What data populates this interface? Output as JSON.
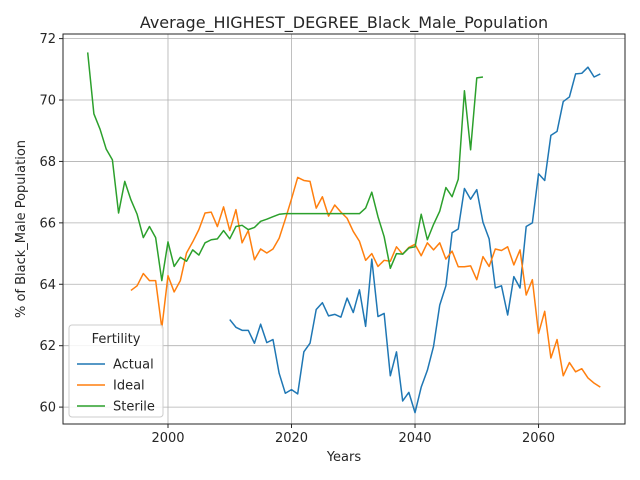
{
  "chart_data": {
    "type": "line",
    "title": "Average_HIGHEST_DEGREE_Black_Male_Population",
    "xlabel": "Years",
    "ylabel": "% of Black_Male Population",
    "xlim": [
      1983,
      2074
    ],
    "ylim": [
      59.45,
      72.15
    ],
    "xticks": [
      2000,
      2020,
      2040,
      2060
    ],
    "yticks": [
      60,
      62,
      64,
      66,
      68,
      70,
      72
    ],
    "grid": true,
    "legend": {
      "title": "Fertility",
      "placement": "lower-left"
    },
    "series": [
      {
        "name": "Actual",
        "color": "#1f77b4",
        "points": [
          [
            2010,
            62.85
          ],
          [
            2011,
            62.6
          ],
          [
            2012,
            62.5
          ],
          [
            2013,
            62.5
          ],
          [
            2014,
            62.08
          ],
          [
            2015,
            62.7
          ],
          [
            2016,
            62.1
          ],
          [
            2017,
            62.2
          ],
          [
            2018,
            61.1
          ],
          [
            2019,
            60.45
          ],
          [
            2020,
            60.57
          ],
          [
            2021,
            60.43
          ],
          [
            2022,
            61.8
          ],
          [
            2023,
            62.08
          ],
          [
            2024,
            63.18
          ],
          [
            2025,
            63.4
          ],
          [
            2026,
            62.97
          ],
          [
            2027,
            63.02
          ],
          [
            2028,
            62.93
          ],
          [
            2029,
            63.55
          ],
          [
            2030,
            63.08
          ],
          [
            2031,
            63.82
          ],
          [
            2032,
            62.63
          ],
          [
            2033,
            64.82
          ],
          [
            2034,
            62.95
          ],
          [
            2035,
            63.05
          ],
          [
            2036,
            61.02
          ],
          [
            2037,
            61.8
          ],
          [
            2038,
            60.2
          ],
          [
            2039,
            60.48
          ],
          [
            2040,
            59.82
          ],
          [
            2041,
            60.65
          ],
          [
            2042,
            61.2
          ],
          [
            2043,
            61.98
          ],
          [
            2044,
            63.32
          ],
          [
            2045,
            63.95
          ],
          [
            2046,
            65.68
          ],
          [
            2047,
            65.8
          ],
          [
            2048,
            67.12
          ],
          [
            2049,
            66.77
          ],
          [
            2050,
            67.08
          ],
          [
            2051,
            66.02
          ],
          [
            2052,
            65.48
          ],
          [
            2053,
            63.88
          ],
          [
            2054,
            63.95
          ],
          [
            2055,
            63.0
          ],
          [
            2056,
            64.25
          ],
          [
            2057,
            63.88
          ],
          [
            2058,
            65.88
          ],
          [
            2059,
            66.0
          ],
          [
            2060,
            67.6
          ],
          [
            2061,
            67.38
          ],
          [
            2062,
            68.85
          ],
          [
            2063,
            68.98
          ],
          [
            2064,
            69.95
          ],
          [
            2065,
            70.1
          ],
          [
            2066,
            70.85
          ],
          [
            2067,
            70.87
          ],
          [
            2068,
            71.07
          ],
          [
            2069,
            70.75
          ],
          [
            2070,
            70.85
          ]
        ]
      },
      {
        "name": "Ideal",
        "color": "#ff7f0e",
        "points": [
          [
            1994,
            63.8
          ],
          [
            1995,
            63.95
          ],
          [
            1996,
            64.35
          ],
          [
            1997,
            64.12
          ],
          [
            1998,
            64.12
          ],
          [
            1999,
            62.58
          ],
          [
            2000,
            64.28
          ],
          [
            2001,
            63.75
          ],
          [
            2002,
            64.12
          ],
          [
            2003,
            65.02
          ],
          [
            2004,
            65.38
          ],
          [
            2005,
            65.78
          ],
          [
            2006,
            66.32
          ],
          [
            2007,
            66.35
          ],
          [
            2008,
            65.88
          ],
          [
            2009,
            66.52
          ],
          [
            2010,
            65.75
          ],
          [
            2011,
            66.43
          ],
          [
            2012,
            65.35
          ],
          [
            2013,
            65.75
          ],
          [
            2014,
            64.8
          ],
          [
            2015,
            65.15
          ],
          [
            2016,
            65.02
          ],
          [
            2017,
            65.15
          ],
          [
            2018,
            65.5
          ],
          [
            2019,
            66.12
          ],
          [
            2020,
            66.78
          ],
          [
            2021,
            67.48
          ],
          [
            2022,
            67.38
          ],
          [
            2023,
            67.35
          ],
          [
            2024,
            66.48
          ],
          [
            2025,
            66.85
          ],
          [
            2026,
            66.22
          ],
          [
            2027,
            66.58
          ],
          [
            2028,
            66.35
          ],
          [
            2029,
            66.15
          ],
          [
            2030,
            65.72
          ],
          [
            2031,
            65.4
          ],
          [
            2032,
            64.78
          ],
          [
            2033,
            65.0
          ],
          [
            2034,
            64.58
          ],
          [
            2035,
            64.78
          ],
          [
            2036,
            64.75
          ],
          [
            2037,
            65.22
          ],
          [
            2038,
            64.98
          ],
          [
            2039,
            65.2
          ],
          [
            2040,
            65.3
          ],
          [
            2041,
            64.93
          ],
          [
            2042,
            65.35
          ],
          [
            2043,
            65.12
          ],
          [
            2044,
            65.35
          ],
          [
            2045,
            64.82
          ],
          [
            2046,
            65.08
          ],
          [
            2047,
            64.57
          ],
          [
            2048,
            64.57
          ],
          [
            2049,
            64.6
          ],
          [
            2050,
            64.15
          ],
          [
            2051,
            64.9
          ],
          [
            2052,
            64.58
          ],
          [
            2053,
            65.15
          ],
          [
            2054,
            65.1
          ],
          [
            2055,
            65.22
          ],
          [
            2056,
            64.63
          ],
          [
            2057,
            65.12
          ],
          [
            2058,
            63.65
          ],
          [
            2059,
            64.15
          ],
          [
            2060,
            62.4
          ],
          [
            2061,
            63.12
          ],
          [
            2062,
            61.6
          ],
          [
            2063,
            62.2
          ],
          [
            2064,
            61.02
          ],
          [
            2065,
            61.45
          ],
          [
            2066,
            61.15
          ],
          [
            2067,
            61.25
          ],
          [
            2068,
            60.95
          ],
          [
            2069,
            60.78
          ],
          [
            2070,
            60.65
          ]
        ]
      },
      {
        "name": "Sterile",
        "color": "#2ca02c",
        "points": [
          [
            1987,
            71.55
          ],
          [
            1988,
            69.55
          ],
          [
            1989,
            69.05
          ],
          [
            1990,
            68.4
          ],
          [
            1991,
            68.05
          ],
          [
            1992,
            66.32
          ],
          [
            1993,
            67.35
          ],
          [
            1994,
            66.75
          ],
          [
            1995,
            66.28
          ],
          [
            1996,
            65.52
          ],
          [
            1997,
            65.88
          ],
          [
            1998,
            65.52
          ],
          [
            1999,
            64.12
          ],
          [
            2000,
            65.38
          ],
          [
            2001,
            64.58
          ],
          [
            2002,
            64.88
          ],
          [
            2003,
            64.75
          ],
          [
            2004,
            65.12
          ],
          [
            2005,
            64.95
          ],
          [
            2006,
            65.35
          ],
          [
            2007,
            65.45
          ],
          [
            2008,
            65.48
          ],
          [
            2009,
            65.75
          ],
          [
            2010,
            65.48
          ],
          [
            2011,
            65.88
          ],
          [
            2012,
            65.92
          ],
          [
            2013,
            65.78
          ],
          [
            2014,
            65.85
          ],
          [
            2015,
            66.05
          ],
          [
            2016,
            66.12
          ],
          [
            2017,
            66.2
          ],
          [
            2018,
            66.28
          ],
          [
            2019,
            66.3
          ],
          [
            2020,
            66.3
          ],
          [
            2021,
            66.3
          ],
          [
            2022,
            66.3
          ],
          [
            2023,
            66.3
          ],
          [
            2024,
            66.3
          ],
          [
            2025,
            66.3
          ],
          [
            2026,
            66.3
          ],
          [
            2027,
            66.3
          ],
          [
            2028,
            66.3
          ],
          [
            2029,
            66.3
          ],
          [
            2030,
            66.3
          ],
          [
            2031,
            66.3
          ],
          [
            2032,
            66.48
          ],
          [
            2033,
            67.0
          ],
          [
            2034,
            66.2
          ],
          [
            2035,
            65.55
          ],
          [
            2036,
            64.52
          ],
          [
            2037,
            65.0
          ],
          [
            2038,
            64.98
          ],
          [
            2039,
            65.18
          ],
          [
            2040,
            65.22
          ],
          [
            2041,
            66.28
          ],
          [
            2042,
            65.45
          ],
          [
            2043,
            65.95
          ],
          [
            2044,
            66.38
          ],
          [
            2045,
            67.15
          ],
          [
            2046,
            66.85
          ],
          [
            2047,
            67.42
          ],
          [
            2048,
            70.3
          ],
          [
            2049,
            68.38
          ],
          [
            2050,
            70.72
          ],
          [
            2051,
            70.75
          ]
        ]
      }
    ]
  }
}
